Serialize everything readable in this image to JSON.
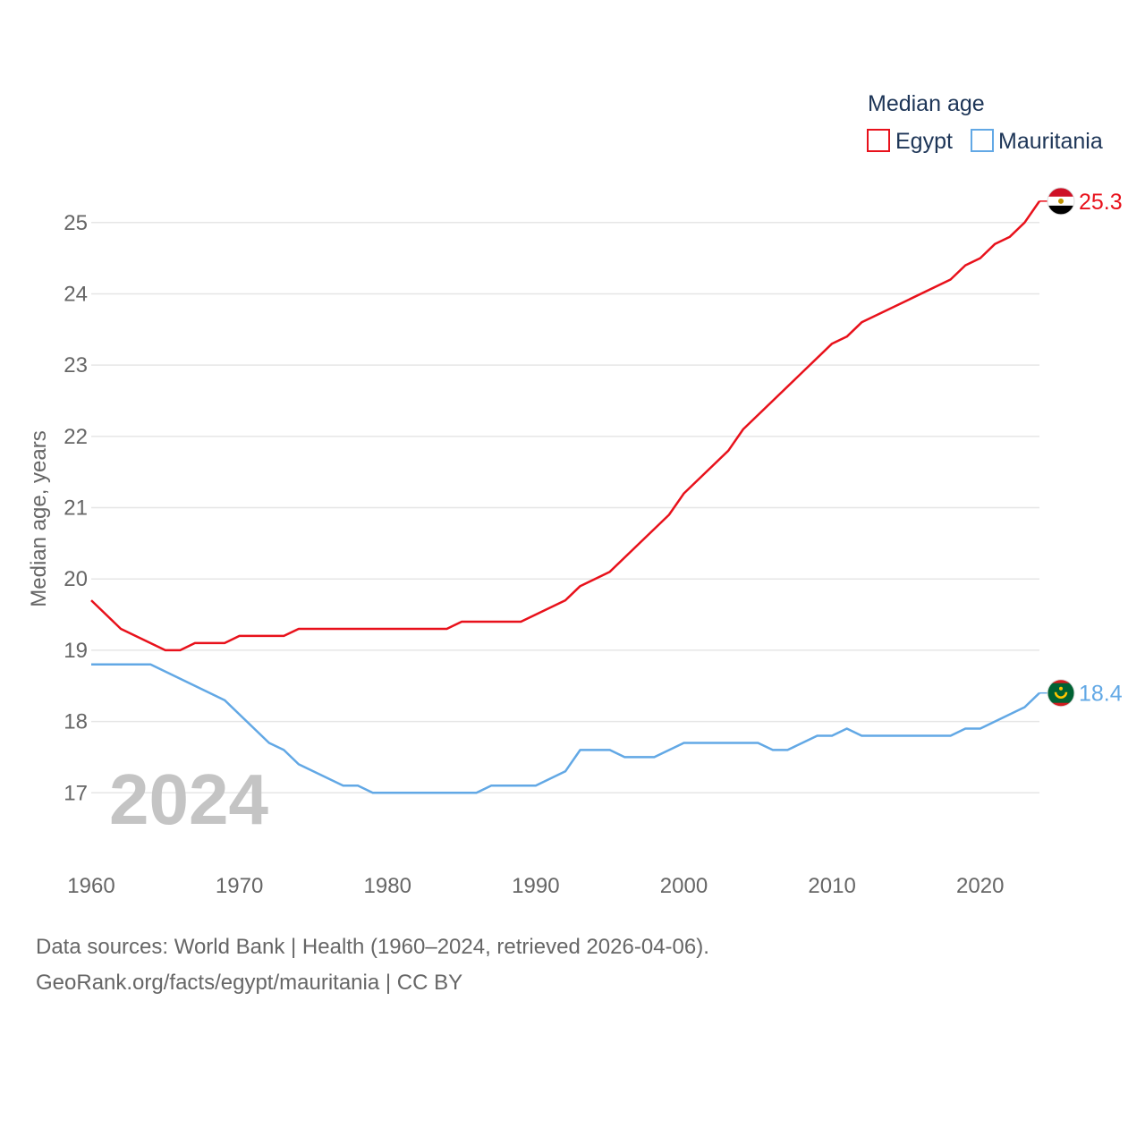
{
  "chart_data": {
    "type": "line",
    "legend_title": "Median age",
    "ylabel": "Median age, years",
    "xlabel": "",
    "xlim": [
      1960,
      2024
    ],
    "ylim": [
      16.2,
      25.7
    ],
    "x_ticks": [
      1960,
      1970,
      1980,
      1990,
      2000,
      2010,
      2020
    ],
    "y_ticks": [
      17,
      18,
      19,
      20,
      21,
      22,
      23,
      24,
      25
    ],
    "legend_position": "top-right",
    "year_label": "2024",
    "series": [
      {
        "name": "Egypt",
        "color": "#e8111b",
        "end_label": "25.3",
        "flag": "egypt-flag",
        "points": [
          [
            1960,
            19.7
          ],
          [
            1962,
            19.3
          ],
          [
            1965,
            19.0
          ],
          [
            1966,
            19.0
          ],
          [
            1967,
            19.1
          ],
          [
            1969,
            19.1
          ],
          [
            1970,
            19.2
          ],
          [
            1973,
            19.2
          ],
          [
            1974,
            19.3
          ],
          [
            1984,
            19.3
          ],
          [
            1985,
            19.4
          ],
          [
            1989,
            19.4
          ],
          [
            1992,
            19.7
          ],
          [
            1993,
            19.9
          ],
          [
            1995,
            20.1
          ],
          [
            1999,
            20.9
          ],
          [
            2000,
            21.2
          ],
          [
            2003,
            21.8
          ],
          [
            2004,
            22.1
          ],
          [
            2010,
            23.3
          ],
          [
            2011,
            23.4
          ],
          [
            2012,
            23.6
          ],
          [
            2018,
            24.2
          ],
          [
            2019,
            24.4
          ],
          [
            2020,
            24.5
          ],
          [
            2021,
            24.7
          ],
          [
            2022,
            24.8
          ],
          [
            2023,
            25.0
          ],
          [
            2024,
            25.3
          ]
        ]
      },
      {
        "name": "Mauritania",
        "color": "#62a8e5",
        "end_label": "18.4",
        "flag": "mauritania-flag",
        "points": [
          [
            1960,
            18.8
          ],
          [
            1964,
            18.8
          ],
          [
            1969,
            18.3
          ],
          [
            1972,
            17.7
          ],
          [
            1973,
            17.6
          ],
          [
            1974,
            17.4
          ],
          [
            1977,
            17.1
          ],
          [
            1978,
            17.1
          ],
          [
            1979,
            17.0
          ],
          [
            1986,
            17.0
          ],
          [
            1987,
            17.1
          ],
          [
            1990,
            17.1
          ],
          [
            1992,
            17.3
          ],
          [
            1993,
            17.6
          ],
          [
            1995,
            17.6
          ],
          [
            1996,
            17.5
          ],
          [
            1998,
            17.5
          ],
          [
            2000,
            17.7
          ],
          [
            2005,
            17.7
          ],
          [
            2006,
            17.6
          ],
          [
            2007,
            17.6
          ],
          [
            2009,
            17.8
          ],
          [
            2010,
            17.8
          ],
          [
            2011,
            17.9
          ],
          [
            2012,
            17.8
          ],
          [
            2018,
            17.8
          ],
          [
            2019,
            17.9
          ],
          [
            2020,
            17.9
          ],
          [
            2023,
            18.2
          ],
          [
            2024,
            18.4
          ]
        ]
      }
    ]
  },
  "footer": {
    "source_text": "Data sources: World Bank | Health (1960–2024, retrieved 2026-04-06).",
    "url_text": "GeoRank.org/facts/egypt/mauritania | CC BY"
  }
}
